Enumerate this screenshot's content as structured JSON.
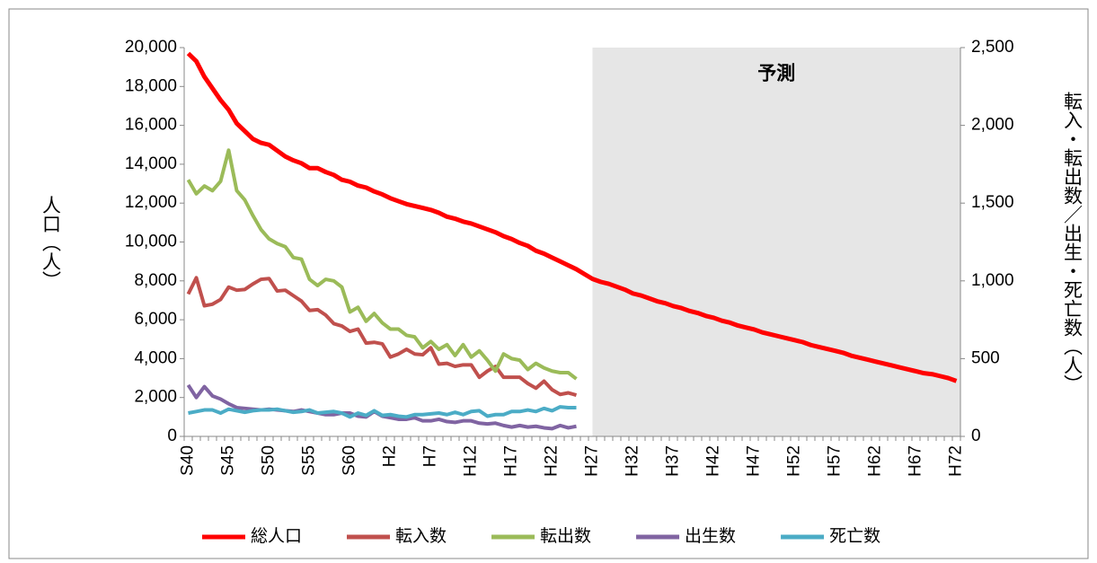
{
  "chart_data": {
    "type": "line",
    "categories": [
      "S40",
      null,
      null,
      null,
      null,
      "S45",
      null,
      null,
      null,
      null,
      "S50",
      null,
      null,
      null,
      null,
      "S55",
      null,
      null,
      null,
      null,
      "S60",
      null,
      null,
      null,
      null,
      "H2",
      null,
      null,
      null,
      null,
      "H7",
      null,
      null,
      null,
      null,
      "H12",
      null,
      null,
      null,
      null,
      "H17",
      null,
      null,
      null,
      null,
      "H22",
      null,
      null,
      null,
      null,
      "H27",
      null,
      null,
      null,
      null,
      "H32",
      null,
      null,
      null,
      null,
      "H37",
      null,
      null,
      null,
      null,
      "H42",
      null,
      null,
      null,
      null,
      "H47",
      null,
      null,
      null,
      null,
      "H52",
      null,
      null,
      null,
      null,
      "H57",
      null,
      null,
      null,
      null,
      "H62",
      null,
      null,
      null,
      null,
      "H67",
      null,
      null,
      null,
      null,
      "H72"
    ],
    "series": [
      {
        "name": "総人口",
        "color": "#ff0000",
        "axis": "y",
        "values": [
          19700,
          19300,
          18500,
          17900,
          17300,
          16800,
          16100,
          15700,
          15300,
          15100,
          15000,
          14700,
          14400,
          14200,
          14050,
          13800,
          13800,
          13600,
          13450,
          13200,
          13100,
          12900,
          12800,
          12600,
          12450,
          12250,
          12100,
          11950,
          11850,
          11750,
          11650,
          11500,
          11300,
          11200,
          11050,
          10950,
          10800,
          10650,
          10500,
          10300,
          10150,
          9950,
          9800,
          9550,
          9400,
          9200,
          9000,
          8800,
          8600,
          8350,
          8100,
          7950,
          7850,
          7700,
          7550,
          7350,
          7250,
          7100,
          6950,
          6850,
          6700,
          6600,
          6450,
          6350,
          6200,
          6100,
          5950,
          5850,
          5700,
          5600,
          5500,
          5350,
          5250,
          5150,
          5050,
          4950,
          4850,
          4700,
          4600,
          4500,
          4400,
          4300,
          4150,
          4050,
          3950,
          3850,
          3750,
          3650,
          3550,
          3450,
          3350,
          3250,
          3200,
          3100,
          3000,
          2850
        ]
      },
      {
        "name": "転入数",
        "color": "#c0504d",
        "axis": "y2",
        "values": [
          915,
          1020,
          840,
          850,
          880,
          960,
          940,
          945,
          980,
          1010,
          1015,
          935,
          940,
          905,
          870,
          810,
          815,
          780,
          725,
          710,
          675,
          690,
          600,
          605,
          595,
          510,
          530,
          560,
          530,
          525,
          570,
          465,
          470,
          450,
          460,
          460,
          380,
          420,
          450,
          380,
          380,
          380,
          340,
          310,
          355,
          300,
          270,
          280,
          265,
          null,
          null,
          null,
          null,
          null,
          null,
          null,
          null,
          null,
          null,
          null,
          null,
          null,
          null,
          null,
          null,
          null,
          null,
          null,
          null,
          null,
          null,
          null,
          null,
          null,
          null,
          null,
          null,
          null,
          null,
          null,
          null,
          null,
          null,
          null,
          null,
          null,
          null,
          null,
          null,
          null,
          null,
          null,
          null,
          null,
          null,
          null
        ]
      },
      {
        "name": "転出数",
        "color": "#9bbb59",
        "axis": "y2",
        "values": [
          1650,
          1560,
          1610,
          1580,
          1640,
          1840,
          1580,
          1520,
          1420,
          1330,
          1270,
          1240,
          1220,
          1150,
          1140,
          1010,
          970,
          1010,
          1000,
          960,
          800,
          830,
          740,
          790,
          730,
          690,
          690,
          650,
          640,
          570,
          610,
          560,
          590,
          520,
          590,
          510,
          550,
          490,
          420,
          530,
          500,
          490,
          430,
          470,
          440,
          420,
          410,
          410,
          370,
          null,
          null,
          null,
          null,
          null,
          null,
          null,
          null,
          null,
          null,
          null,
          null,
          null,
          null,
          null,
          null,
          null,
          null,
          null,
          null,
          null,
          null,
          null,
          null,
          null,
          null,
          null,
          null,
          null,
          null,
          null,
          null,
          null,
          null,
          null,
          null,
          null,
          null,
          null,
          null,
          null,
          null,
          null,
          null,
          null,
          null,
          null
        ]
      },
      {
        "name": "出生数",
        "color": "#8064a2",
        "axis": "y2",
        "values": [
          330,
          250,
          320,
          260,
          240,
          210,
          185,
          180,
          175,
          170,
          175,
          170,
          165,
          160,
          170,
          160,
          150,
          140,
          140,
          150,
          150,
          130,
          125,
          160,
          130,
          120,
          110,
          110,
          120,
          100,
          100,
          110,
          95,
          90,
          100,
          100,
          85,
          80,
          85,
          70,
          60,
          70,
          60,
          65,
          55,
          50,
          70,
          55,
          65,
          null,
          null,
          null,
          null,
          null,
          null,
          null,
          null,
          null,
          null,
          null,
          null,
          null,
          null,
          null,
          null,
          null,
          null,
          null,
          null,
          null,
          null,
          null,
          null,
          null,
          null,
          null,
          null,
          null,
          null,
          null,
          null,
          null,
          null,
          null,
          null,
          null,
          null,
          null,
          null,
          null,
          null,
          null,
          null,
          null,
          null,
          null
        ]
      },
      {
        "name": "死亡数",
        "color": "#4bacc6",
        "axis": "y2",
        "values": [
          150,
          160,
          170,
          170,
          150,
          175,
          165,
          155,
          165,
          170,
          170,
          175,
          165,
          155,
          160,
          170,
          150,
          155,
          160,
          150,
          125,
          150,
          135,
          165,
          135,
          140,
          130,
          125,
          140,
          140,
          145,
          150,
          140,
          155,
          140,
          160,
          165,
          130,
          140,
          140,
          160,
          160,
          170,
          160,
          180,
          165,
          190,
          185,
          185,
          null,
          null,
          null,
          null,
          null,
          null,
          null,
          null,
          null,
          null,
          null,
          null,
          null,
          null,
          null,
          null,
          null,
          null,
          null,
          null,
          null,
          null,
          null,
          null,
          null,
          null,
          null,
          null,
          null,
          null,
          null,
          null,
          null,
          null,
          null,
          null,
          null,
          null,
          null,
          null,
          null,
          null,
          null,
          null,
          null,
          null,
          null
        ]
      }
    ],
    "ylabel": "人口（人）",
    "y2label": "転入・転出数／出生・死亡数（人）",
    "ylim": [
      0,
      20000
    ],
    "yticks": [
      0,
      {
        "value": 2000,
        "label": "2,000"
      },
      {
        "value": 4000,
        "label": "4,000"
      },
      {
        "value": 6000,
        "label": "6,000"
      },
      {
        "value": 8000,
        "label": "8,000"
      },
      {
        "value": 10000,
        "label": "10,000"
      },
      {
        "value": 12000,
        "label": "12,000"
      },
      {
        "value": 14000,
        "label": "14,000"
      },
      {
        "value": 16000,
        "label": "16,000"
      },
      {
        "value": 18000,
        "label": "18,000"
      },
      {
        "value": 20000,
        "label": "20,000"
      }
    ],
    "y2lim": [
      0,
      2500
    ],
    "y2ticks": [
      0,
      500,
      {
        "value": 1000,
        "label": "1,000"
      },
      {
        "value": 1500,
        "label": "1,500"
      },
      {
        "value": 2000,
        "label": "2,000"
      },
      {
        "value": 2500,
        "label": "2,500"
      }
    ],
    "shade": {
      "label": "予測",
      "from": "H27",
      "color": "#e6e6e6"
    },
    "legend": "bottom"
  }
}
